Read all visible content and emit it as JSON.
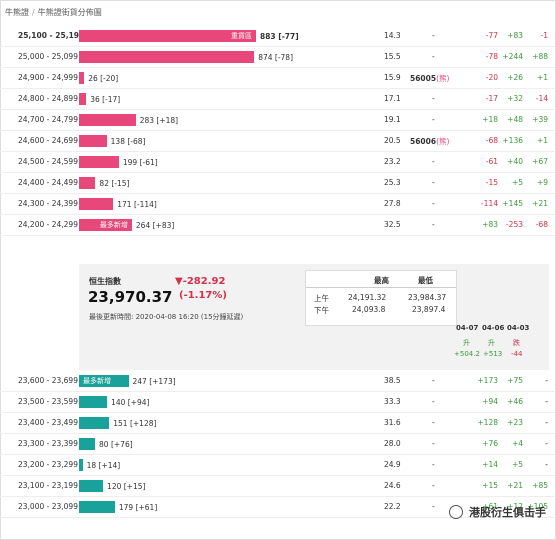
{
  "breadcrumb": [
    "牛熊證",
    "牛熊證街貨分佈圖"
  ],
  "rows_top": [
    {
      "range": "25,100 - 25,199",
      "bar_label": "重貨區",
      "amount": "883 [-77]",
      "pct": "14.3",
      "code": "-",
      "chg": [
        "-77",
        "+83",
        "-1"
      ]
    },
    {
      "range": "25,000 - 25,099",
      "bar_label": "",
      "amount": "874 [-78]",
      "pct": "15.5",
      "code": "-",
      "chg": [
        "-78",
        "+244",
        "+88"
      ]
    },
    {
      "range": "24,900 - 24,999",
      "bar_label": "",
      "amount": "26 [-20]",
      "pct": "15.9",
      "code": "56005",
      "code_tag": "(熊)",
      "chg": [
        "-20",
        "+26",
        "+1"
      ]
    },
    {
      "range": "24,800 - 24,899",
      "bar_label": "",
      "amount": "36 [-17]",
      "pct": "17.1",
      "code": "-",
      "chg": [
        "-17",
        "+32",
        "-14"
      ]
    },
    {
      "range": "24,700 - 24,799",
      "bar_label": "",
      "amount": "283 [+18]",
      "pct": "19.1",
      "code": "-",
      "chg": [
        "+18",
        "+48",
        "+39"
      ]
    },
    {
      "range": "24,600 - 24,699",
      "bar_label": "",
      "amount": "138 [-68]",
      "pct": "20.5",
      "code": "56006",
      "code_tag": "(熊)",
      "chg": [
        "-68",
        "+136",
        "+1"
      ]
    },
    {
      "range": "24,500 - 24,599",
      "bar_label": "",
      "amount": "199 [-61]",
      "pct": "23.2",
      "code": "-",
      "chg": [
        "-61",
        "+40",
        "+67"
      ]
    },
    {
      "range": "24,400 - 24,499",
      "bar_label": "",
      "amount": "82 [-15]",
      "pct": "25.3",
      "code": "-",
      "chg": [
        "-15",
        "+5",
        "+9"
      ]
    },
    {
      "range": "24,300 - 24,399",
      "bar_label": "",
      "amount": "171 [-114]",
      "pct": "27.8",
      "code": "-",
      "chg": [
        "-114",
        "+145",
        "+21"
      ]
    },
    {
      "range": "24,200 - 24,299",
      "bar_label": "最多新增",
      "amount": "264 [+83]",
      "pct": "32.5",
      "code": "-",
      "chg": [
        "+83",
        "-253",
        "-68"
      ]
    }
  ],
  "rows_bottom": [
    {
      "range": "23,600 - 23,699",
      "bar_label": "最多新增",
      "amount": "247 [+173]",
      "pct": "38.5",
      "code": "-",
      "chg": [
        "+173",
        "+75",
        "-"
      ]
    },
    {
      "range": "23,500 - 23,599",
      "bar_label": "",
      "amount": "140 [+94]",
      "pct": "33.3",
      "code": "-",
      "chg": [
        "+94",
        "+46",
        "-"
      ]
    },
    {
      "range": "23,400 - 23,499",
      "bar_label": "",
      "amount": "151 [+128]",
      "pct": "31.6",
      "code": "-",
      "chg": [
        "+128",
        "+23",
        "-"
      ]
    },
    {
      "range": "23,300 - 23,399",
      "bar_label": "",
      "amount": "80 [+76]",
      "pct": "28.0",
      "code": "-",
      "chg": [
        "+76",
        "+4",
        "-"
      ]
    },
    {
      "range": "23,200 - 23,299",
      "bar_label": "",
      "amount": "18 [+14]",
      "pct": "24.9",
      "code": "-",
      "chg": [
        "+14",
        "+5",
        "-"
      ]
    },
    {
      "range": "23,100 - 23,199",
      "bar_label": "",
      "amount": "120 [+15]",
      "pct": "24.6",
      "code": "-",
      "chg": [
        "+15",
        "+21",
        "+85"
      ]
    },
    {
      "range": "23,000 - 23,099",
      "bar_label": "",
      "amount": "179 [+61]",
      "pct": "22.2",
      "code": "-",
      "chg": [
        "+61",
        "+12",
        "+105"
      ]
    }
  ],
  "index_panel": {
    "label": "恒生指數",
    "value": "23,970.37",
    "change": "▼-282.92",
    "change_pct": "(-1.17%)",
    "updated": "最後更新時間: 2020-04-08 16:20 (15分鐘延遲)",
    "hl_headers": [
      "最高",
      "最低"
    ],
    "hl_rows": [
      {
        "label": "上午",
        "high": "24,191.32",
        "low": "23,984.37"
      },
      {
        "label": "下午",
        "high": "24,093.8",
        "low": "23,897.4"
      }
    ],
    "days": [
      {
        "date": "04-07",
        "dir": "升",
        "amount": "+504.2"
      },
      {
        "date": "04-06",
        "dir": "升",
        "amount": "+513"
      },
      {
        "date": "04-03",
        "dir": "跌",
        "amount": "-44"
      }
    ]
  },
  "watermark": "港股衍生俱击手",
  "colors": {
    "bull_bar": "#18a29a",
    "bear_bar": "#e8477c",
    "pos": "#3a9a3a",
    "neg": "#d4304a"
  }
}
